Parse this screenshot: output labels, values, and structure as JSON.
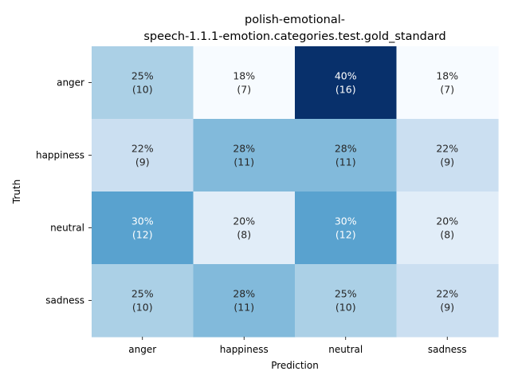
{
  "chart_data": {
    "type": "heatmap",
    "title_lines": [
      "polish-emotional-",
      "speech-1.1.1-emotion.categories.test.gold_standard"
    ],
    "xlabel": "Prediction",
    "ylabel": "Truth",
    "x_categories": [
      "anger",
      "happiness",
      "neutral",
      "sadness"
    ],
    "y_categories": [
      "anger",
      "happiness",
      "neutral",
      "sadness"
    ],
    "counts": [
      [
        10,
        7,
        16,
        7
      ],
      [
        9,
        11,
        11,
        9
      ],
      [
        12,
        8,
        12,
        8
      ],
      [
        10,
        11,
        10,
        9
      ]
    ],
    "percent_labels": [
      [
        "25%",
        "18%",
        "40%",
        "18%"
      ],
      [
        "22%",
        "28%",
        "28%",
        "22%"
      ],
      [
        "30%",
        "20%",
        "30%",
        "20%"
      ],
      [
        "25%",
        "28%",
        "25%",
        "22%"
      ]
    ],
    "count_labels": [
      [
        "(10)",
        "(7)",
        "(16)",
        "(7)"
      ],
      [
        "(9)",
        "(11)",
        "(11)",
        "(9)"
      ],
      [
        "(12)",
        "(8)",
        "(12)",
        "(8)"
      ],
      [
        "(10)",
        "(11)",
        "(10)",
        "(9)"
      ]
    ],
    "colormap": "Blues",
    "colorbar": false,
    "grid": false
  }
}
